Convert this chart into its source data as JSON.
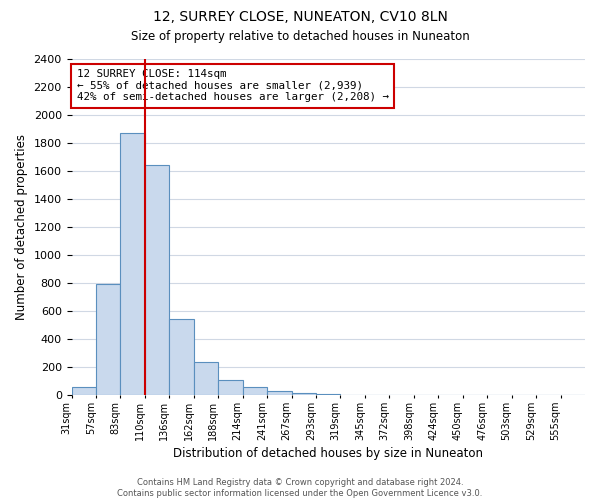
{
  "title": "12, SURREY CLOSE, NUNEATON, CV10 8LN",
  "subtitle": "Size of property relative to detached houses in Nuneaton",
  "xlabel": "Distribution of detached houses by size in Nuneaton",
  "ylabel": "Number of detached properties",
  "bin_labels": [
    "31sqm",
    "57sqm",
    "83sqm",
    "110sqm",
    "136sqm",
    "162sqm",
    "188sqm",
    "214sqm",
    "241sqm",
    "267sqm",
    "293sqm",
    "319sqm",
    "345sqm",
    "372sqm",
    "398sqm",
    "424sqm",
    "450sqm",
    "476sqm",
    "503sqm",
    "529sqm",
    "555sqm"
  ],
  "bar_values": [
    55,
    790,
    1870,
    1640,
    540,
    235,
    110,
    55,
    30,
    15,
    5,
    0,
    0,
    0,
    0,
    0,
    0,
    0,
    0,
    0,
    0
  ],
  "bar_color": "#c9d9ed",
  "bar_edge_color": "#5a8fbe",
  "red_line_x": 3,
  "red_line_color": "#cc0000",
  "annotation_title": "12 SURREY CLOSE: 114sqm",
  "annotation_line1": "← 55% of detached houses are smaller (2,939)",
  "annotation_line2": "42% of semi-detached houses are larger (2,208) →",
  "annotation_box_edge": "#cc0000",
  "ylim": [
    0,
    2400
  ],
  "yticks": [
    0,
    200,
    400,
    600,
    800,
    1000,
    1200,
    1400,
    1600,
    1800,
    2000,
    2200,
    2400
  ],
  "footer_line1": "Contains HM Land Registry data © Crown copyright and database right 2024.",
  "footer_line2": "Contains public sector information licensed under the Open Government Licence v3.0.",
  "bg_color": "#ffffff",
  "grid_color": "#d0d8e4"
}
